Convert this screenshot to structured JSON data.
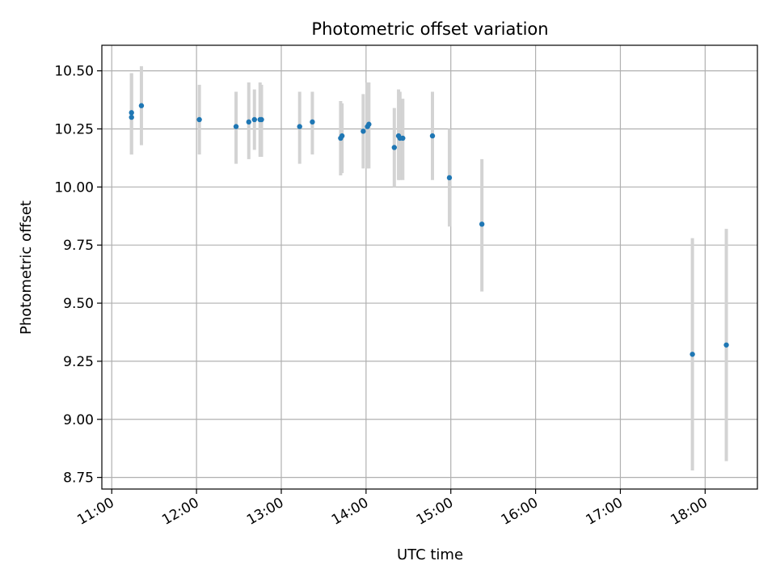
{
  "chart_data": {
    "type": "scatter",
    "title": "Photometric offset variation",
    "xlabel": "UTC time",
    "ylabel": "Photometric offset",
    "x_tick_labels": [
      "11:00",
      "12:00",
      "13:00",
      "14:00",
      "15:00",
      "16:00",
      "17:00",
      "18:00"
    ],
    "y_tick_labels": [
      "8.75",
      "9.00",
      "9.25",
      "9.50",
      "9.75",
      "10.00",
      "10.25",
      "10.50"
    ],
    "xlim": [
      "10:53",
      "18:37"
    ],
    "ylim": [
      8.7,
      10.61
    ],
    "grid": true,
    "colors": {
      "point": "#1f77b4",
      "errorbar": "#d3d3d3",
      "grid": "#b0b0b0"
    },
    "points": [
      {
        "x": "11:14",
        "y": 10.32,
        "ylow": 10.14,
        "yhigh": 10.49
      },
      {
        "x": "11:14",
        "y": 10.3,
        "ylow": 10.14,
        "yhigh": 10.49
      },
      {
        "x": "11:21",
        "y": 10.35,
        "ylow": 10.18,
        "yhigh": 10.52
      },
      {
        "x": "12:02",
        "y": 10.29,
        "ylow": 10.14,
        "yhigh": 10.44
      },
      {
        "x": "12:28",
        "y": 10.26,
        "ylow": 10.1,
        "yhigh": 10.41
      },
      {
        "x": "12:37",
        "y": 10.28,
        "ylow": 10.12,
        "yhigh": 10.45
      },
      {
        "x": "12:41",
        "y": 10.29,
        "ylow": 10.16,
        "yhigh": 10.42
      },
      {
        "x": "12:45",
        "y": 10.29,
        "ylow": 10.13,
        "yhigh": 10.45
      },
      {
        "x": "12:46",
        "y": 10.29,
        "ylow": 10.13,
        "yhigh": 10.44
      },
      {
        "x": "13:13",
        "y": 10.26,
        "ylow": 10.1,
        "yhigh": 10.41
      },
      {
        "x": "13:22",
        "y": 10.28,
        "ylow": 10.14,
        "yhigh": 10.41
      },
      {
        "x": "13:42",
        "y": 10.21,
        "ylow": 10.05,
        "yhigh": 10.37
      },
      {
        "x": "13:43",
        "y": 10.22,
        "ylow": 10.06,
        "yhigh": 10.36
      },
      {
        "x": "13:58",
        "y": 10.24,
        "ylow": 10.08,
        "yhigh": 10.4
      },
      {
        "x": "14:01",
        "y": 10.26,
        "ylow": 10.08,
        "yhigh": 10.45
      },
      {
        "x": "14:02",
        "y": 10.27,
        "ylow": 10.08,
        "yhigh": 10.45
      },
      {
        "x": "14:20",
        "y": 10.17,
        "ylow": 10.0,
        "yhigh": 10.34
      },
      {
        "x": "14:23",
        "y": 10.22,
        "ylow": 10.03,
        "yhigh": 10.42
      },
      {
        "x": "14:24",
        "y": 10.21,
        "ylow": 10.03,
        "yhigh": 10.41
      },
      {
        "x": "14:26",
        "y": 10.21,
        "ylow": 10.03,
        "yhigh": 10.38
      },
      {
        "x": "14:47",
        "y": 10.22,
        "ylow": 10.03,
        "yhigh": 10.41
      },
      {
        "x": "14:59",
        "y": 10.04,
        "ylow": 9.83,
        "yhigh": 10.25
      },
      {
        "x": "15:22",
        "y": 9.84,
        "ylow": 9.55,
        "yhigh": 10.12
      },
      {
        "x": "17:51",
        "y": 9.28,
        "ylow": 8.78,
        "yhigh": 9.78
      },
      {
        "x": "18:15",
        "y": 9.32,
        "ylow": 8.82,
        "yhigh": 9.82
      }
    ]
  }
}
